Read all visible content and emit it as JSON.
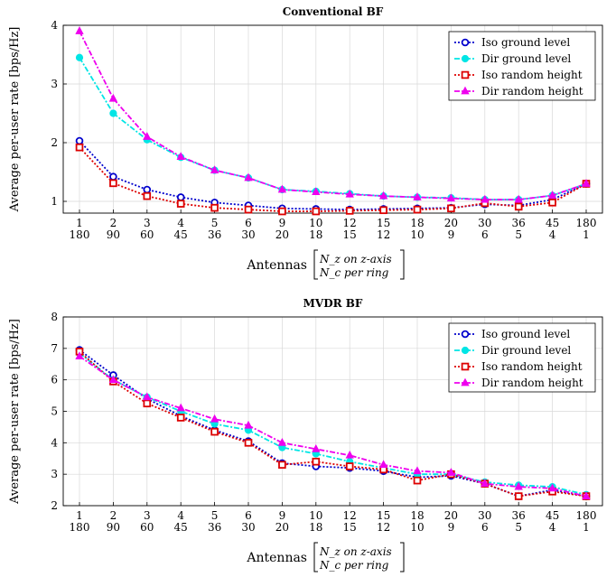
{
  "chart_data": [
    {
      "type": "line",
      "title": "Conventional BF",
      "ylabel": "Average per-user rate [bps/Hz]",
      "xlabel_prefix": "Antennas",
      "xlabel_line1": "N_z on z-axis",
      "xlabel_line2": "N_c per ring",
      "categories_top": [
        "1",
        "2",
        "3",
        "4",
        "5",
        "6",
        "9",
        "10",
        "12",
        "15",
        "18",
        "20",
        "30",
        "36",
        "45",
        "180"
      ],
      "categories_bottom": [
        "180",
        "90",
        "60",
        "45",
        "36",
        "30",
        "20",
        "18",
        "15",
        "12",
        "10",
        "9",
        "6",
        "5",
        "4",
        "1"
      ],
      "ylim": [
        0.8,
        4
      ],
      "yticks": [
        1,
        2,
        3,
        4
      ],
      "grid": true,
      "legend_position": "top-right",
      "series": [
        {
          "name": "Iso ground level",
          "color": "#0000cc",
          "marker": "circle-open",
          "values": [
            2.03,
            1.42,
            1.2,
            1.07,
            0.98,
            0.93,
            0.88,
            0.87,
            0.86,
            0.87,
            0.88,
            0.89,
            0.95,
            0.93,
            1.03,
            1.3
          ]
        },
        {
          "name": "Dir ground level",
          "color": "#00e5e5",
          "marker": "circle-filled",
          "values": [
            3.45,
            2.5,
            2.05,
            1.75,
            1.53,
            1.4,
            1.2,
            1.17,
            1.13,
            1.09,
            1.07,
            1.06,
            1.03,
            1.03,
            1.1,
            1.3
          ]
        },
        {
          "name": "Iso random height",
          "color": "#dd0000",
          "marker": "square-open",
          "values": [
            1.92,
            1.31,
            1.09,
            0.96,
            0.89,
            0.86,
            0.83,
            0.83,
            0.84,
            0.85,
            0.86,
            0.88,
            0.97,
            0.91,
            0.98,
            1.3
          ]
        },
        {
          "name": "Dir random height",
          "color": "#ee00ee",
          "marker": "triangle-filled",
          "values": [
            3.9,
            2.75,
            2.1,
            1.76,
            1.53,
            1.4,
            1.2,
            1.16,
            1.12,
            1.09,
            1.07,
            1.05,
            1.03,
            1.03,
            1.1,
            1.3
          ]
        }
      ]
    },
    {
      "type": "line",
      "title": "MVDR BF",
      "ylabel": "Average per-user rate [bps/Hz]",
      "xlabel_prefix": "Antennas",
      "xlabel_line1": "N_z on z-axis",
      "xlabel_line2": "N_c per ring",
      "categories_top": [
        "1",
        "2",
        "3",
        "4",
        "5",
        "6",
        "9",
        "10",
        "12",
        "15",
        "18",
        "20",
        "30",
        "36",
        "45",
        "180"
      ],
      "categories_bottom": [
        "180",
        "90",
        "60",
        "45",
        "36",
        "30",
        "20",
        "18",
        "15",
        "12",
        "10",
        "9",
        "6",
        "5",
        "4",
        "1"
      ],
      "ylim": [
        2,
        8
      ],
      "yticks": [
        2,
        3,
        4,
        5,
        6,
        7,
        8
      ],
      "grid": true,
      "legend_position": "top-right",
      "series": [
        {
          "name": "Iso ground level",
          "color": "#0000cc",
          "marker": "circle-open",
          "values": [
            6.95,
            6.15,
            5.4,
            4.85,
            4.4,
            4.05,
            3.35,
            3.25,
            3.2,
            3.1,
            2.9,
            2.95,
            2.7,
            2.3,
            2.5,
            2.3
          ]
        },
        {
          "name": "Dir ground level",
          "color": "#00e5e5",
          "marker": "circle-filled",
          "values": [
            6.85,
            6.0,
            5.45,
            5.0,
            4.6,
            4.4,
            3.85,
            3.65,
            3.4,
            3.2,
            3.0,
            3.0,
            2.75,
            2.65,
            2.6,
            2.35
          ]
        },
        {
          "name": "Iso random height",
          "color": "#dd0000",
          "marker": "square-open",
          "values": [
            6.9,
            5.95,
            5.25,
            4.8,
            4.35,
            4.0,
            3.3,
            3.4,
            3.25,
            3.15,
            2.8,
            3.0,
            2.7,
            2.3,
            2.45,
            2.3
          ]
        },
        {
          "name": "Dir random height",
          "color": "#ee00ee",
          "marker": "triangle-filled",
          "values": [
            6.75,
            6.0,
            5.45,
            5.1,
            4.75,
            4.55,
            4.0,
            3.8,
            3.6,
            3.3,
            3.1,
            3.05,
            2.7,
            2.6,
            2.55,
            2.3
          ]
        }
      ]
    }
  ]
}
